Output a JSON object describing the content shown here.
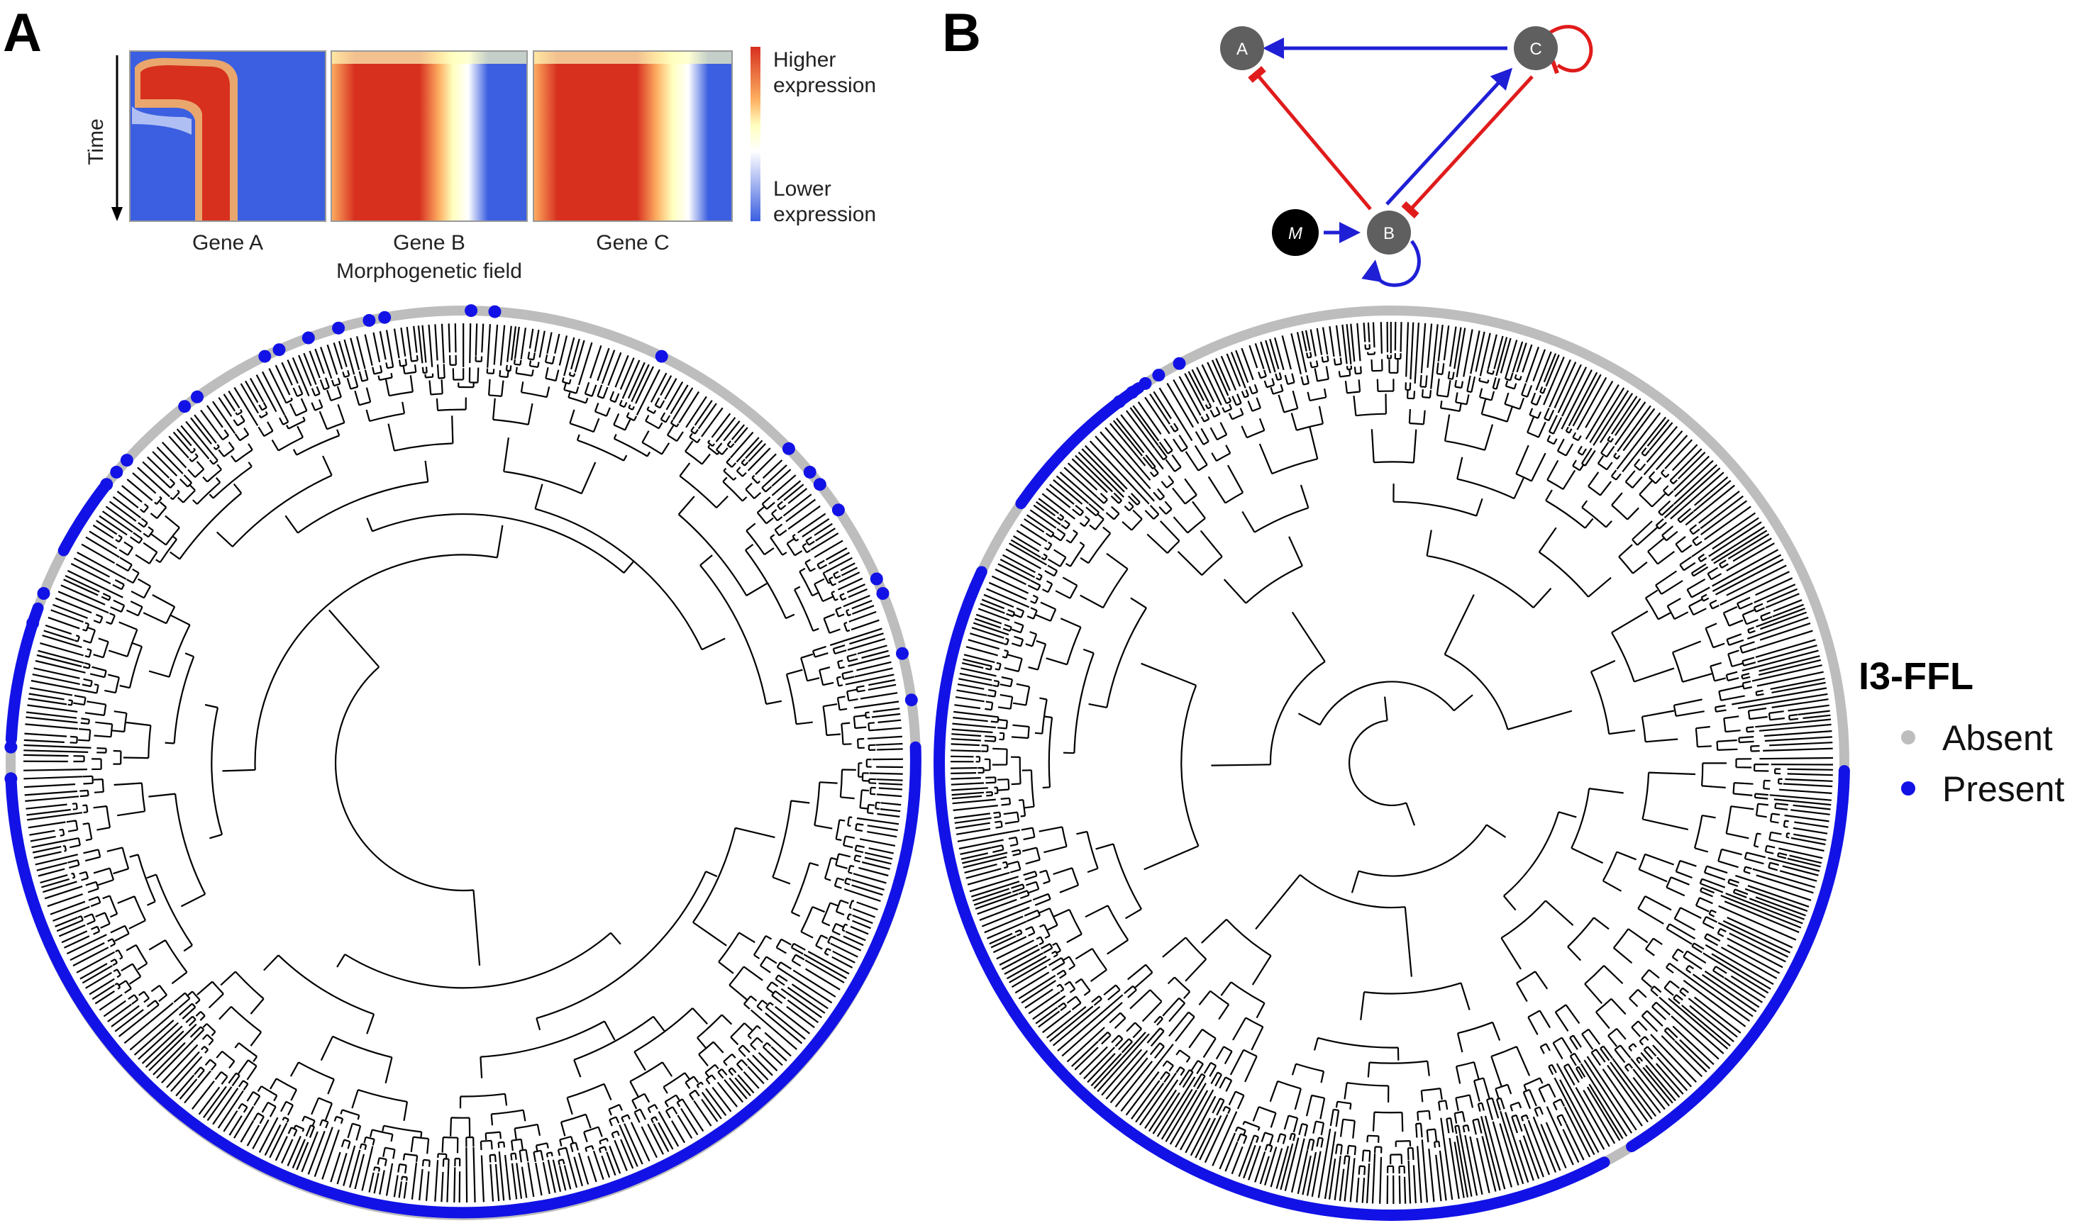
{
  "panels": {
    "a_letter": "A",
    "b_letter": "B"
  },
  "heatmap": {
    "time_label": "Time",
    "genes": [
      "Gene A",
      "Gene B",
      "Gene C"
    ],
    "field_label": "Morphogenetic field",
    "colorbar_high": [
      "Higher",
      "expression"
    ],
    "colorbar_low": [
      "Lower",
      "expression"
    ],
    "colors": {
      "high": "#d7301f",
      "mid": "#ffffbf",
      "white": "#ffffff",
      "low": "#3b5fe0"
    }
  },
  "network": {
    "nodes": [
      {
        "id": "A",
        "label": "A"
      },
      {
        "id": "B",
        "label": "B"
      },
      {
        "id": "C",
        "label": "C"
      },
      {
        "id": "M",
        "label": "M"
      }
    ],
    "edges": [
      {
        "from": "C",
        "to": "A",
        "type": "activation",
        "color": "#1f1fd6"
      },
      {
        "from": "B",
        "to": "A",
        "type": "repression",
        "color": "#e01b1b"
      },
      {
        "from": "B",
        "to": "C",
        "type": "activation",
        "color": "#1f1fd6"
      },
      {
        "from": "C",
        "to": "B",
        "type": "repression",
        "color": "#e01b1b"
      },
      {
        "from": "C",
        "to": "C",
        "type": "repression",
        "color": "#e01b1b"
      },
      {
        "from": "B",
        "to": "B",
        "type": "activation",
        "color": "#1f1fd6"
      },
      {
        "from": "M",
        "to": "B",
        "type": "activation",
        "color": "#1f1fd6"
      }
    ]
  },
  "legend": {
    "title": "I3-FFL",
    "items": [
      {
        "label": "Absent",
        "color": "#bdbdbd"
      },
      {
        "label": "Present",
        "color": "#1212e6"
      }
    ]
  }
}
